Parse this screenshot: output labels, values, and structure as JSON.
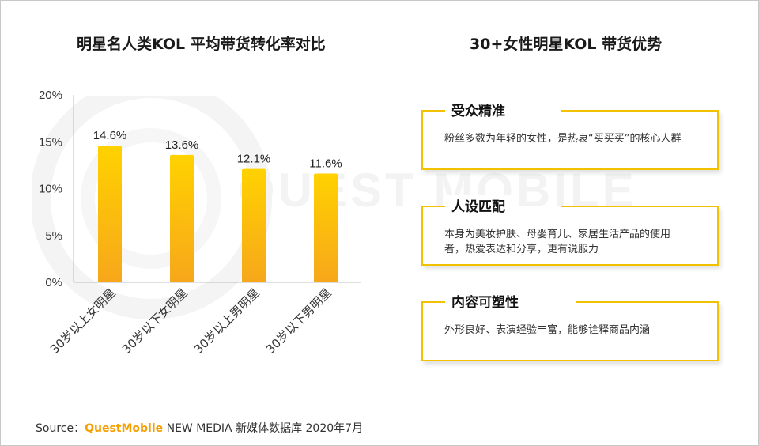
{
  "left_title": "明星名人类KOL 平均带货转化率对比",
  "right_title": "30+女性明星KOL 带货优势",
  "watermark": "QUEST MOBILE",
  "chart_data": {
    "type": "bar",
    "title": "明星名人类KOL 平均带货转化率对比",
    "categories": [
      "30岁以上女明星",
      "30岁以下女明星",
      "30岁以上男明星",
      "30岁以下男明星"
    ],
    "values": [
      14.6,
      13.6,
      12.1,
      11.6
    ],
    "data_labels": [
      "14.6%",
      "13.6%",
      "12.1%",
      "11.6%"
    ],
    "unit": "%",
    "ylim": [
      0,
      20
    ],
    "yticks": [
      0,
      5,
      10,
      15,
      20
    ],
    "ytick_labels": [
      "0%",
      "5%",
      "10%",
      "15%",
      "20%"
    ],
    "bar_color_top": "#ffd200",
    "bar_color_bottom": "#f7a71b",
    "grid": false
  },
  "cards": [
    {
      "title": "受众精准",
      "desc": "粉丝多数为年轻的女性，是热衷“买买买”的核心人群"
    },
    {
      "title": "人设匹配",
      "desc": "本身为美妆护肤、母婴育儿、家居生活产品的使用者，热爱表达和分享，更有说服力"
    },
    {
      "title": "内容可塑性",
      "desc": "外形良好、表演经验丰富，能够诠释商品内涵"
    }
  ],
  "source": {
    "prefix": "Source：",
    "brand": "QuestMobile",
    "suffix": " NEW MEDIA 新媒体数据库 2020年7月"
  },
  "colors": {
    "accent": "#f2c200",
    "brand": "#f5a000"
  }
}
